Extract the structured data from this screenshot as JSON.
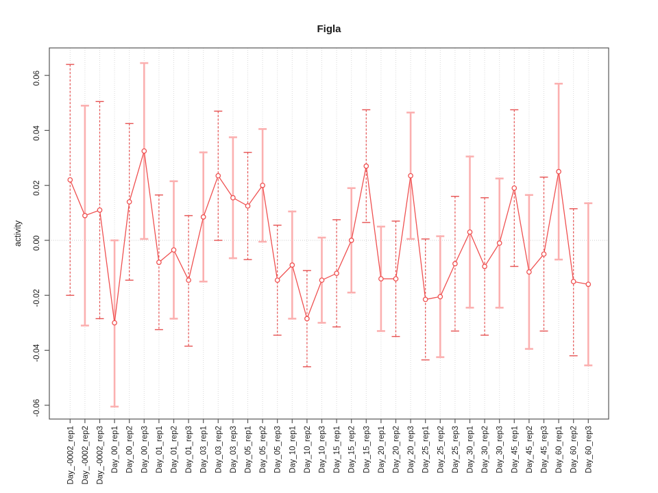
{
  "title": "Figla",
  "axes": {
    "y_label": "activity",
    "y_tick_labels": [
      "0.06",
      "0.04",
      "0.02",
      "0.00",
      "-0.02",
      "-0.04",
      "-0.06"
    ],
    "y_tick_values": [
      0.06,
      0.04,
      0.02,
      0.0,
      -0.02,
      -0.04,
      -0.06
    ]
  },
  "style": {
    "series_color": "#ef5050",
    "errorbar_dashed_color": "#e65050",
    "errorbar_solid_color": "#fbb0b0",
    "grid_color": "#d8d8d8",
    "zero_line_color": "#c8c8c8",
    "box_color": "#555555",
    "text_color": "#1a1a1a",
    "marker": "open-circle"
  },
  "chart_data": {
    "type": "line",
    "subtype": "means-with-error-bars",
    "title": "Figla",
    "xlabel": "",
    "ylabel": "activity",
    "ylim": [
      -0.065,
      0.07
    ],
    "y_ticks": [
      -0.06,
      -0.04,
      -0.02,
      0.0,
      0.02,
      0.04,
      0.06
    ],
    "grid": "vertical dotted gridline per category; horizontal dotted line at y=0",
    "legend": "none",
    "categories": [
      "Day_-0002_rep1",
      "Day_-0002_rep2",
      "Day_-0002_rep3",
      "Day_00_rep1",
      "Day_00_rep2",
      "Day_00_rep3",
      "Day_01_rep1",
      "Day_01_rep2",
      "Day_01_rep3",
      "Day_03_rep1",
      "Day_03_rep2",
      "Day_03_rep3",
      "Day_05_rep1",
      "Day_05_rep2",
      "Day_05_rep3",
      "Day_10_rep1",
      "Day_10_rep2",
      "Day_10_rep3",
      "Day_15_rep1",
      "Day_15_rep2",
      "Day_15_rep3",
      "Day_20_rep1",
      "Day_20_rep2",
      "Day_20_rep3",
      "Day_25_rep1",
      "Day_25_rep2",
      "Day_25_rep3",
      "Day_30_rep1",
      "Day_30_rep2",
      "Day_30_rep3",
      "Day_45_rep1",
      "Day_45_rep2",
      "Day_45_rep3",
      "Day_60_rep1",
      "Day_60_rep2",
      "Day_60_rep3"
    ],
    "values": [
      0.022,
      0.009,
      0.011,
      -0.03,
      0.014,
      0.0325,
      -0.008,
      -0.0035,
      -0.0145,
      0.0085,
      0.0235,
      0.0155,
      0.0125,
      0.02,
      -0.0145,
      -0.009,
      -0.0285,
      -0.0145,
      -0.012,
      0.0,
      0.027,
      -0.014,
      -0.014,
      0.0235,
      -0.0215,
      -0.0205,
      -0.0085,
      0.003,
      -0.0095,
      -0.001,
      0.019,
      -0.0115,
      -0.005,
      0.025,
      -0.015,
      -0.016
    ],
    "upper": [
      0.064,
      0.049,
      0.0505,
      0.0,
      0.0425,
      0.0645,
      0.0165,
      0.0215,
      0.009,
      0.032,
      0.047,
      0.0375,
      0.032,
      0.0405,
      0.0055,
      0.0105,
      -0.011,
      0.001,
      0.0075,
      0.019,
      0.0475,
      0.005,
      0.007,
      0.0465,
      0.0005,
      0.0015,
      0.016,
      0.0305,
      0.0155,
      0.0225,
      0.0475,
      0.0165,
      0.023,
      0.057,
      0.0115,
      0.0135
    ],
    "lower": [
      -0.02,
      -0.031,
      -0.0285,
      -0.0605,
      -0.0145,
      0.0005,
      -0.0325,
      -0.0285,
      -0.0385,
      -0.015,
      0.0,
      -0.0065,
      -0.007,
      -0.0005,
      -0.0345,
      -0.0285,
      -0.046,
      -0.03,
      -0.0315,
      -0.019,
      0.0065,
      -0.033,
      -0.035,
      0.0005,
      -0.0435,
      -0.0425,
      -0.033,
      -0.0245,
      -0.0345,
      -0.0245,
      -0.0095,
      -0.0395,
      -0.033,
      -0.007,
      -0.042,
      -0.0455
    ]
  }
}
